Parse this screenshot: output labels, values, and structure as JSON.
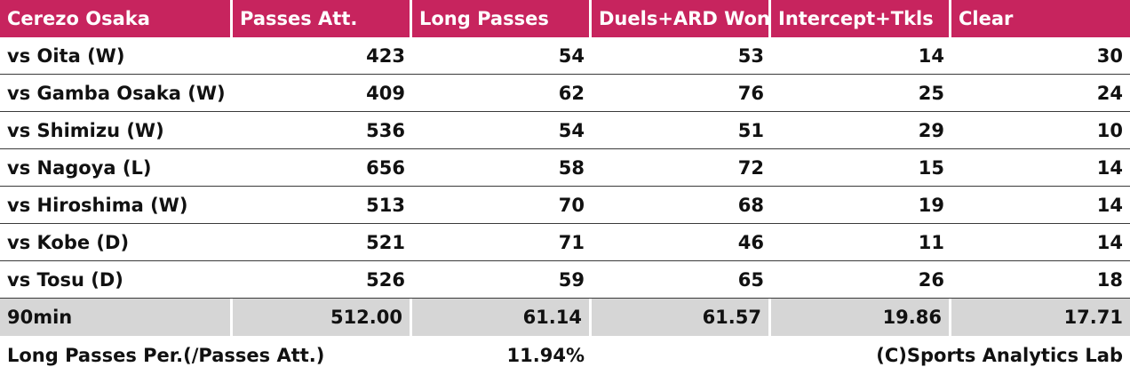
{
  "chart_data": {
    "type": "table",
    "columns": [
      "Cerezo Osaka",
      "Passes Att.",
      "Long Passes",
      "Duels+ARD Won",
      "Intercept+Tkls",
      "Clear"
    ],
    "rows": [
      [
        "vs Oita (W)",
        "423",
        "54",
        "53",
        "14",
        "30"
      ],
      [
        "vs Gamba Osaka (W)",
        "409",
        "62",
        "76",
        "25",
        "24"
      ],
      [
        "vs Shimizu (W)",
        "536",
        "54",
        "51",
        "29",
        "10"
      ],
      [
        "vs Nagoya (L)",
        "656",
        "58",
        "72",
        "15",
        "14"
      ],
      [
        "vs Hiroshima (W)",
        "513",
        "70",
        "68",
        "19",
        "14"
      ],
      [
        "vs Kobe (D)",
        "521",
        "71",
        "46",
        "11",
        "14"
      ],
      [
        "vs Tosu (D)",
        "526",
        "59",
        "65",
        "26",
        "18"
      ]
    ],
    "summary_row": [
      "90min",
      "512.00",
      "61.14",
      "61.57",
      "19.86",
      "17.71"
    ]
  },
  "footer": {
    "label": "Long Passes Per.(/Passes Att.)",
    "value": "11.94%",
    "credit": "(C)Sports Analytics Lab"
  },
  "colors": {
    "header_bg": "#c7245e",
    "summary_bg": "#d6d6d6"
  }
}
